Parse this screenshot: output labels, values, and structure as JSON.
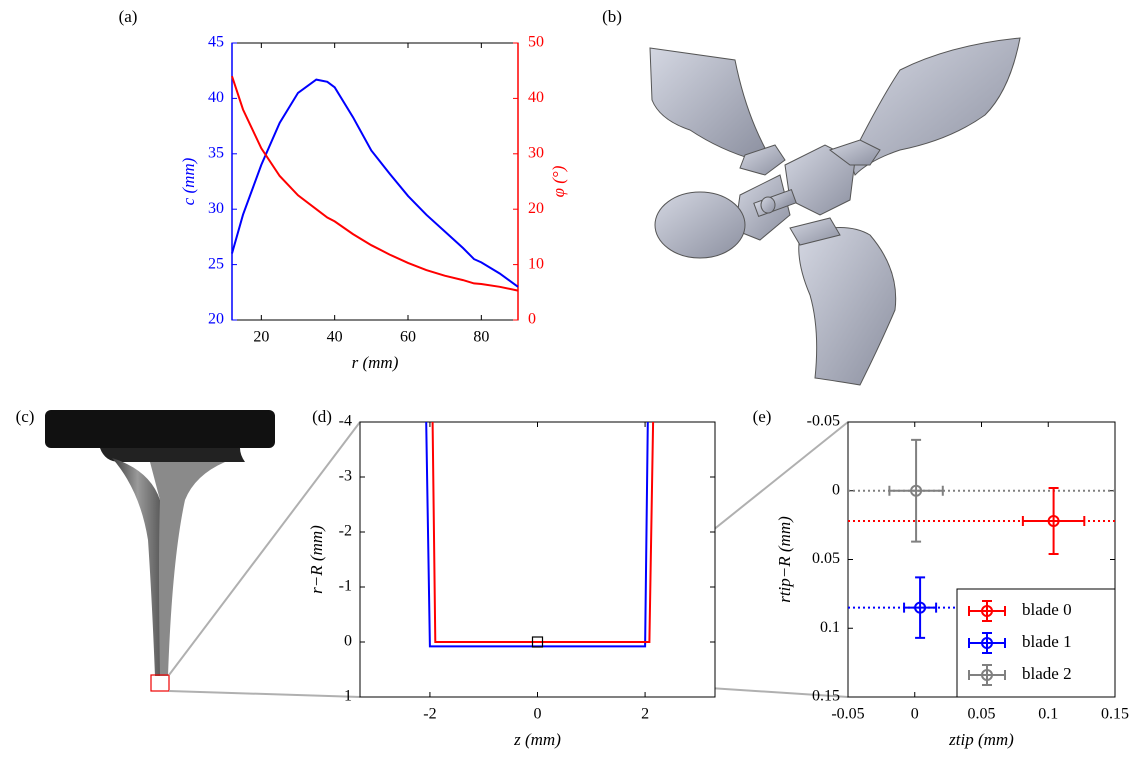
{
  "chart_data": [
    {
      "type": "line",
      "panel_label": "(a)",
      "x_label": "r (mm)",
      "y_label": "c (mm)",
      "y2_label": "φ (°)",
      "xlim": [
        12,
        90
      ],
      "xticks": [
        20,
        40,
        60,
        80
      ],
      "ylim": [
        20,
        45
      ],
      "yticks": [
        20,
        25,
        30,
        35,
        40,
        45
      ],
      "y2lim": [
        0,
        50
      ],
      "y2ticks": [
        0,
        10,
        20,
        30,
        40,
        50
      ],
      "x": [
        12,
        15,
        20,
        25,
        30,
        35,
        38,
        40,
        45,
        50,
        55,
        60,
        65,
        70,
        75,
        78,
        80,
        85,
        90
      ],
      "series": [
        {
          "color": "#0000ff",
          "values": [
            26,
            29.5,
            34,
            37.8,
            40.5,
            41.7,
            41.5,
            41,
            38.3,
            35.3,
            33.2,
            31.2,
            29.5,
            28,
            26.5,
            25.5,
            25.2,
            24.2,
            23
          ]
        },
        {
          "color": "#ff0000",
          "axis": "y2",
          "values": [
            44,
            38,
            31,
            26,
            22.5,
            20,
            18.5,
            17.8,
            15.5,
            13.5,
            11.8,
            10.3,
            9,
            8,
            7.2,
            6.6,
            6.5,
            6,
            5.3
          ]
        }
      ]
    },
    {
      "type": "image",
      "panel_label": "(b)"
    },
    {
      "type": "image",
      "panel_label": "(c)"
    },
    {
      "type": "line",
      "panel_label": "(d)",
      "x_label": "z (mm)",
      "y_label": "r−R (mm)",
      "xlim": [
        -3.3,
        3.3
      ],
      "xticks": [
        -2,
        0,
        2
      ],
      "ylim": [
        -4,
        1
      ],
      "yticks": [
        -4,
        -3,
        -2,
        -1,
        0,
        1
      ],
      "y_inverted": true,
      "series": [
        {
          "color": "#0000ff",
          "x": [
            -2.07,
            -2.0,
            2.0,
            2.05
          ],
          "values": [
            -4,
            0.08,
            0.08,
            -4
          ]
        },
        {
          "color": "#ff0000",
          "x": [
            -1.95,
            -1.9,
            2.08,
            2.15
          ],
          "values": [
            -4,
            0,
            0,
            -4
          ]
        }
      ]
    },
    {
      "type": "errorbar",
      "panel_label": "(e)",
      "x_label": "ztip (mm)",
      "y_label": "rtip−R (mm)",
      "xlim": [
        -0.05,
        0.15
      ],
      "xticks": [
        -0.05,
        0,
        0.05,
        0.1,
        0.15
      ],
      "ylim": [
        -0.05,
        0.15
      ],
      "yticks": [
        -0.05,
        0,
        0.05,
        0.1,
        0.15
      ],
      "y_inverted": true,
      "legend": "lower right",
      "series": [
        {
          "name": "blade 0",
          "color": "#ff0000",
          "x": [
            0.104
          ],
          "values": [
            0.022
          ],
          "xerr": [
            0.023
          ],
          "yerr": [
            0.024
          ]
        },
        {
          "name": "blade 1",
          "color": "#0000ff",
          "x": [
            0.004
          ],
          "values": [
            0.085
          ],
          "xerr": [
            0.012
          ],
          "yerr": [
            0.022
          ]
        },
        {
          "name": "blade 2",
          "color": "#808080",
          "x": [
            0.001
          ],
          "values": [
            0
          ],
          "xerr": [
            0.02
          ],
          "yerr": [
            0.037
          ]
        }
      ]
    }
  ]
}
